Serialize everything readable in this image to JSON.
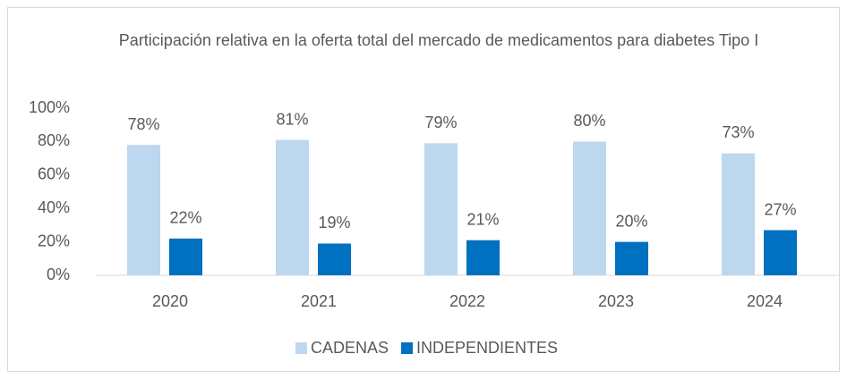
{
  "chart_data": {
    "type": "bar",
    "title": "Participación relativa en la oferta total del mercado de medicamentos para diabetes Tipo I",
    "categories": [
      "2020",
      "2021",
      "2022",
      "2023",
      "2024"
    ],
    "series": [
      {
        "name": "CADENAS",
        "color": "#bdd7ee",
        "values": [
          78,
          81,
          79,
          80,
          73
        ],
        "value_labels": [
          "78%",
          "81%",
          "79%",
          "80%",
          "73%"
        ]
      },
      {
        "name": "INDEPENDIENTES",
        "color": "#0070c0",
        "values": [
          22,
          19,
          21,
          20,
          27
        ],
        "value_labels": [
          "22%",
          "19%",
          "21%",
          "20%",
          "27%"
        ]
      }
    ],
    "ylim": [
      0,
      100
    ],
    "yticks": [
      {
        "value": 0,
        "label": "0%"
      },
      {
        "value": 20,
        "label": "20%"
      },
      {
        "value": 40,
        "label": "40%"
      },
      {
        "value": 60,
        "label": "60%"
      },
      {
        "value": 80,
        "label": "80%"
      },
      {
        "value": 100,
        "label": "100%"
      }
    ],
    "grid": false,
    "legend": "bottom"
  }
}
